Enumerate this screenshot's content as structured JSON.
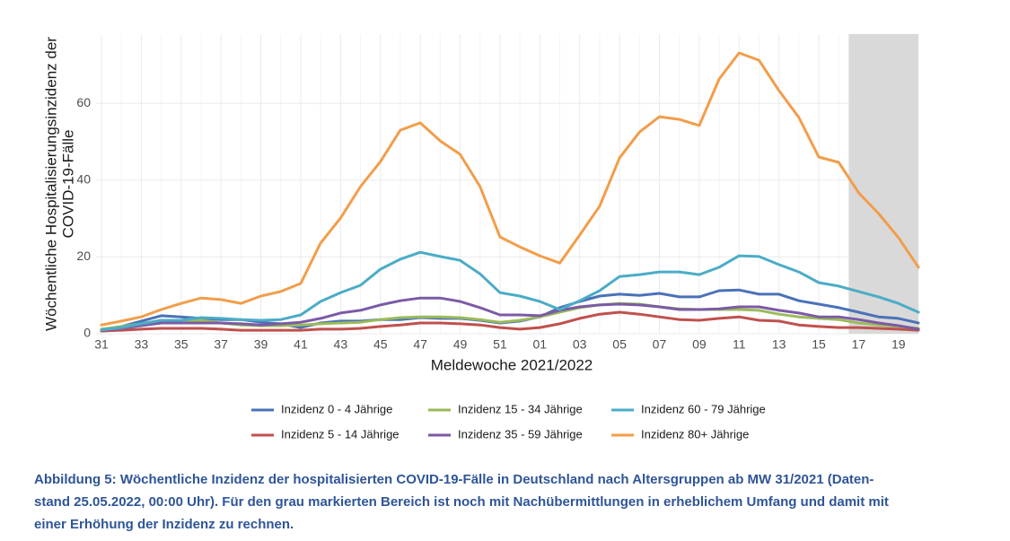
{
  "chart_data": {
    "type": "line",
    "xlabel": "Meldewoche 2021/2022",
    "ylabel": [
      "Wöchentliche Hospitalisierungsinzidenz der",
      "COVID-19-Fälle"
    ],
    "categories": [
      "31",
      null,
      "33",
      null,
      "35",
      null,
      "37",
      null,
      "39",
      null,
      "41",
      null,
      "43",
      null,
      "45",
      null,
      "47",
      null,
      "49",
      null,
      "51",
      null,
      "01",
      null,
      "03",
      null,
      "05",
      null,
      "07",
      null,
      "09",
      null,
      "11",
      null,
      "13",
      null,
      "15",
      null,
      "17",
      null,
      "19",
      null
    ],
    "ylim": [
      0,
      78
    ],
    "yticks": [
      0,
      20,
      40,
      60
    ],
    "grid": true,
    "shade_x": [
      37.5,
      41
    ],
    "series": [
      {
        "name": "Inzidenz 0 - 4 Jährige",
        "color": "#4a72b8",
        "values": [
          0.9,
          1.9,
          3.3,
          4.7,
          4.4,
          4,
          3.7,
          3.7,
          3,
          2.6,
          1.6,
          2.8,
          3.3,
          3.3,
          3.7,
          3.7,
          4.2,
          4,
          4,
          3.5,
          2.8,
          3.3,
          4.4,
          6.8,
          8.4,
          9.8,
          10.3,
          10,
          10.5,
          9.6,
          9.6,
          11.2,
          11.4,
          10.3,
          10.3,
          8.6,
          7.7,
          6.8,
          5.6,
          4.4,
          4,
          2.8
        ]
      },
      {
        "name": "Inzidenz 5 - 14 Jährige",
        "color": "#c0504d",
        "values": [
          0.7,
          0.9,
          1.2,
          1.4,
          1.4,
          1.4,
          1.2,
          0.9,
          0.9,
          0.9,
          0.9,
          1.2,
          1.2,
          1.4,
          1.9,
          2.3,
          2.8,
          2.8,
          2.6,
          2.3,
          1.6,
          1.2,
          1.6,
          2.6,
          4,
          5.1,
          5.6,
          5.1,
          4.4,
          3.7,
          3.5,
          4,
          4.4,
          3.5,
          3.3,
          2.3,
          1.9,
          1.6,
          1.6,
          1.4,
          1.2,
          0.9
        ]
      },
      {
        "name": "Inzidenz 15 - 34 Jährige",
        "color": "#9bbb59",
        "values": [
          1.2,
          1.9,
          2.6,
          3.5,
          3.5,
          3.5,
          2.8,
          2.3,
          2.1,
          2.1,
          2.3,
          2.6,
          2.8,
          3,
          3.7,
          4.2,
          4.4,
          4.4,
          4.2,
          3.7,
          3,
          3.5,
          4.4,
          5.6,
          6.8,
          7.5,
          7.9,
          7.7,
          7,
          6.5,
          6.3,
          6.3,
          6.3,
          6.1,
          5.1,
          4.4,
          4,
          3.7,
          2.8,
          2.3,
          1.9,
          1.4
        ]
      },
      {
        "name": "Inzidenz 35 - 59 Jährige",
        "color": "#7b5aa6",
        "values": [
          0.9,
          1.4,
          2.1,
          2.8,
          2.8,
          2.8,
          2.8,
          2.6,
          2.3,
          2.6,
          3,
          4,
          5.4,
          6.1,
          7.5,
          8.6,
          9.3,
          9.3,
          8.4,
          6.8,
          4.9,
          4.9,
          4.7,
          6.1,
          7,
          7.5,
          7.7,
          7.5,
          7,
          6.3,
          6.3,
          6.5,
          7,
          7,
          6.1,
          5.4,
          4.4,
          4.4,
          3.7,
          2.8,
          2.1,
          1.2
        ]
      },
      {
        "name": "Inzidenz 60 - 79 Jährige",
        "color": "#4bacc6",
        "values": [
          1,
          1.6,
          2.6,
          3.5,
          3.5,
          4.2,
          4,
          3.7,
          3.5,
          3.7,
          4.9,
          8.4,
          10.7,
          12.6,
          16.8,
          19.4,
          21.2,
          20.1,
          19.1,
          15.6,
          10.7,
          9.8,
          8.4,
          6.3,
          8.6,
          11.2,
          14.9,
          15.4,
          16.1,
          16.1,
          15.4,
          17.3,
          20.3,
          20.1,
          18,
          16.1,
          13.3,
          12.4,
          11,
          9.6,
          7.9,
          5.6
        ]
      },
      {
        "name": "Inzidenz 80+ Jährige",
        "color": "#f29d4a",
        "values": [
          2.3,
          3.3,
          4.4,
          6.3,
          7.9,
          9.3,
          8.9,
          7.9,
          9.8,
          11,
          13.1,
          23.6,
          30.1,
          38.3,
          44.8,
          53,
          54.9,
          50.2,
          46.7,
          38.3,
          25.2,
          22.6,
          20.3,
          18.4,
          25.7,
          33.2,
          45.8,
          52.5,
          56.5,
          55.8,
          54.2,
          66.3,
          73.1,
          71.2,
          63.3,
          56.3,
          46,
          44.6,
          36.7,
          31.3,
          25,
          17.3
        ]
      }
    ]
  },
  "caption": [
    "Abbildung 5: Wöchentliche Inzidenz der hospitalisierten COVID-19-Fälle in Deutschland nach Altersgruppen ab MW 31/2021 (Daten-",
    "stand 25.05.2022, 00:00 Uhr). Für den grau markierten Bereich ist noch mit Nachübermittlungen in erheblichem Umfang und damit mit",
    "einer Erhöhung der Inzidenz zu rechnen."
  ]
}
